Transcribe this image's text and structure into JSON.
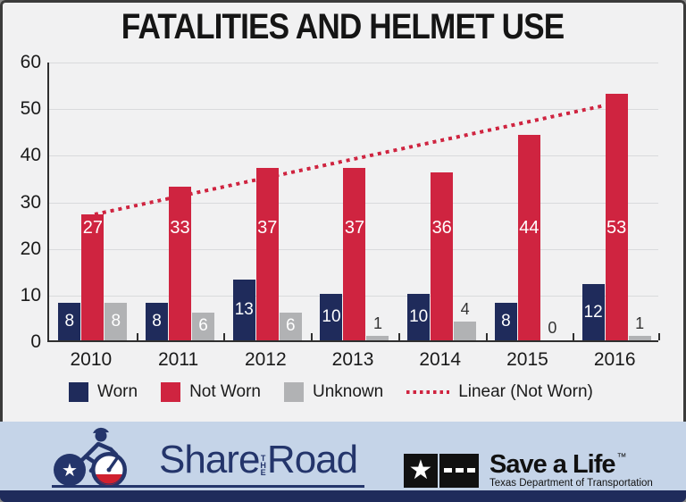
{
  "title": "FATALITIES AND HELMET USE",
  "chart_data": {
    "type": "bar",
    "title": "FATALITIES AND HELMET USE",
    "categories": [
      "2010",
      "2011",
      "2012",
      "2013",
      "2014",
      "2015",
      "2016"
    ],
    "series": [
      {
        "name": "Worn",
        "color": "#1f2b5b",
        "values": [
          8,
          8,
          13,
          10,
          10,
          8,
          12
        ]
      },
      {
        "name": "Not Worn",
        "color": "#cf2440",
        "values": [
          27,
          33,
          37,
          37,
          36,
          44,
          53
        ]
      },
      {
        "name": "Unknown",
        "color": "#b1b2b4",
        "values": [
          8,
          6,
          6,
          1,
          4,
          0,
          1
        ]
      }
    ],
    "trendline": {
      "name": "Linear (Not Worn)",
      "series": "Not Worn",
      "style": "dotted",
      "color": "#cf2440",
      "start_value": 27.5,
      "end_value": 51
    },
    "ylim": [
      0,
      60
    ],
    "yticks": [
      0,
      10,
      20,
      30,
      40,
      50,
      60
    ],
    "grid": true,
    "legend_position": "bottom-left",
    "xlabel": "",
    "ylabel": ""
  },
  "footer": {
    "share_logo": {
      "share": "Share",
      "the": "THE",
      "road": "Road"
    },
    "save_logo": {
      "name": "Save a Life",
      "tm": "™",
      "subtitle": "Texas Department of Transportation",
      "star": "★"
    },
    "share_star": "★"
  },
  "colors": {
    "background": "#f1f1f2",
    "border": "#3b3b3b",
    "gridline": "#d9dadc",
    "band_blue": "#c5d4e8",
    "strip_navy": "#1f2b5b",
    "logo_navy": "#24356b",
    "texas_red": "#d0212f",
    "label_dark": "#333333"
  }
}
